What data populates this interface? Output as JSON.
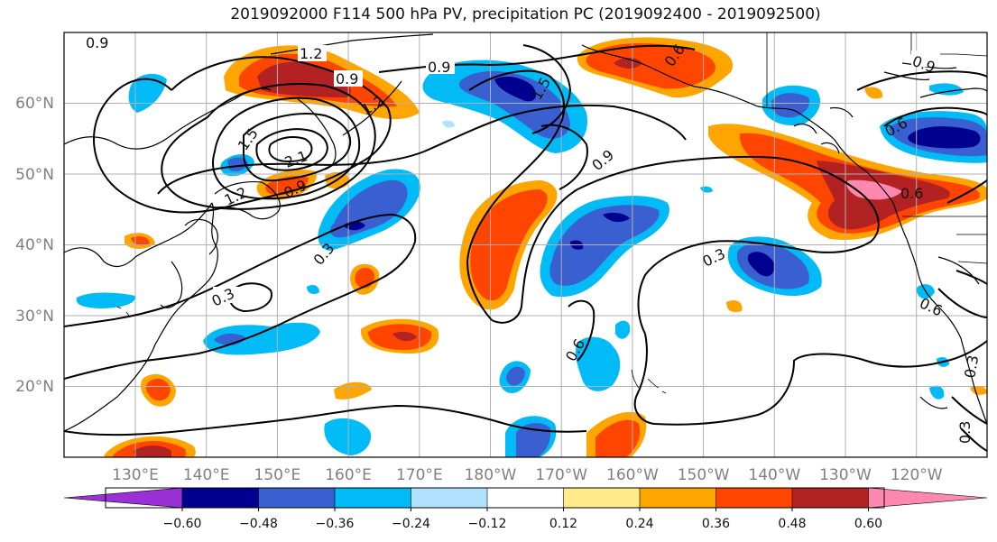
{
  "figure": {
    "title": "2019092000 F114 500 hPa PV, precipitation PC (2019092400 - 2019092500)"
  },
  "map": {
    "lat_labels": [
      "60°N",
      "50°N",
      "40°N",
      "30°N",
      "20°N"
    ],
    "lon_labels": [
      "130°E",
      "140°E",
      "150°E",
      "160°E",
      "170°E",
      "180°W",
      "170°W",
      "160°W",
      "150°W",
      "140°W",
      "130°W",
      "120°W"
    ],
    "contour_labels": [
      "0.9",
      "1.2",
      "0.9",
      "0.9",
      "1.5",
      "1.2",
      "1.5",
      "2.1",
      "1.2",
      "0.9",
      "0.6",
      "0.9",
      "0.9",
      "0.3",
      "0.3",
      "0.6",
      "0.3",
      "0.6",
      "0.6",
      "0.6",
      "0.3",
      "0.3"
    ]
  },
  "colorbar": {
    "colors": [
      "#9b30d6",
      "#000090",
      "#3a5fd0",
      "#00bbf5",
      "#b0e2ff",
      "#ffffff",
      "#ffeb8a",
      "#ffa500",
      "#ff4500",
      "#b22222",
      "#ff88b0"
    ],
    "tick_labels": [
      "−0.60",
      "−0.48",
      "−0.36",
      "−0.24",
      "−0.12",
      "0.12",
      "0.24",
      "0.36",
      "0.48",
      "0.60"
    ]
  }
}
